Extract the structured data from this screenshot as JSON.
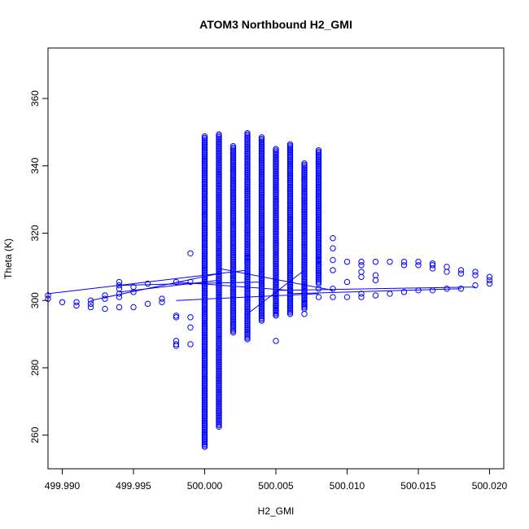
{
  "chart_data": {
    "type": "scatter",
    "title": "ATOM3 Northbound H2_GMI",
    "xlabel": "H2_GMI",
    "ylabel": "Theta (K)",
    "xlim": [
      499.989,
      500.021
    ],
    "ylim": [
      250,
      375
    ],
    "xticks": [
      "499.990",
      "499.995",
      "500.000",
      "500.005",
      "500.010",
      "500.015",
      "500.020"
    ],
    "yticks": [
      "260",
      "280",
      "300",
      "320",
      "340",
      "360"
    ],
    "marker": "open-circle",
    "color": "#0000ff",
    "grid": false,
    "legend": "none",
    "columns": [
      {
        "x": 500.0,
        "ymin": 256.5,
        "ymax": 349.0
      },
      {
        "x": 500.001,
        "ymin": 262.5,
        "ymax": 349.5
      },
      {
        "x": 500.002,
        "ymin": 290.5,
        "ymax": 346.0
      },
      {
        "x": 500.003,
        "ymin": 288.5,
        "ymax": 350.0
      },
      {
        "x": 500.004,
        "ymin": 294.0,
        "ymax": 348.5
      },
      {
        "x": 500.005,
        "ymin": 295.5,
        "ymax": 345.0
      },
      {
        "x": 500.006,
        "ymin": 296.0,
        "ymax": 346.5
      },
      {
        "x": 500.007,
        "ymin": 297.5,
        "ymax": 341.0
      },
      {
        "x": 500.008,
        "ymin": 305.0,
        "ymax": 345.0
      }
    ],
    "points": [
      {
        "x": 499.989,
        "y": 300.5
      },
      {
        "x": 499.989,
        "y": 301.5
      },
      {
        "x": 499.99,
        "y": 299.5
      },
      {
        "x": 499.991,
        "y": 298.5
      },
      {
        "x": 499.991,
        "y": 299.5
      },
      {
        "x": 499.992,
        "y": 298.0
      },
      {
        "x": 499.992,
        "y": 300.0
      },
      {
        "x": 499.992,
        "y": 299.0
      },
      {
        "x": 499.993,
        "y": 297.5
      },
      {
        "x": 499.993,
        "y": 300.5
      },
      {
        "x": 499.993,
        "y": 301.5
      },
      {
        "x": 499.994,
        "y": 298.0
      },
      {
        "x": 499.994,
        "y": 301.0
      },
      {
        "x": 499.994,
        "y": 302.0
      },
      {
        "x": 499.994,
        "y": 303.5
      },
      {
        "x": 499.994,
        "y": 304.5
      },
      {
        "x": 499.994,
        "y": 305.5
      },
      {
        "x": 499.995,
        "y": 298.0
      },
      {
        "x": 499.995,
        "y": 302.5
      },
      {
        "x": 499.995,
        "y": 304.0
      },
      {
        "x": 499.996,
        "y": 299.0
      },
      {
        "x": 499.996,
        "y": 305.0
      },
      {
        "x": 499.997,
        "y": 299.5
      },
      {
        "x": 499.997,
        "y": 300.5
      },
      {
        "x": 499.998,
        "y": 295.0
      },
      {
        "x": 499.998,
        "y": 295.5
      },
      {
        "x": 499.998,
        "y": 305.5
      },
      {
        "x": 499.998,
        "y": 287.0
      },
      {
        "x": 499.998,
        "y": 288.0
      },
      {
        "x": 499.998,
        "y": 286.5
      },
      {
        "x": 499.999,
        "y": 314.0
      },
      {
        "x": 499.999,
        "y": 292.0
      },
      {
        "x": 499.999,
        "y": 295.0
      },
      {
        "x": 499.999,
        "y": 287.0
      },
      {
        "x": 499.999,
        "y": 305.5
      },
      {
        "x": 500.003,
        "y": 311.5
      },
      {
        "x": 500.003,
        "y": 312.5
      },
      {
        "x": 500.005,
        "y": 288.0
      },
      {
        "x": 500.005,
        "y": 297.0
      },
      {
        "x": 500.005,
        "y": 298.5
      },
      {
        "x": 500.006,
        "y": 300.5
      },
      {
        "x": 500.006,
        "y": 303.0
      },
      {
        "x": 500.007,
        "y": 296.0
      },
      {
        "x": 500.007,
        "y": 299.0
      },
      {
        "x": 500.007,
        "y": 304.0
      },
      {
        "x": 500.008,
        "y": 301.0
      },
      {
        "x": 500.008,
        "y": 303.5
      },
      {
        "x": 500.008,
        "y": 312.0
      },
      {
        "x": 500.009,
        "y": 301.0
      },
      {
        "x": 500.009,
        "y": 303.5
      },
      {
        "x": 500.009,
        "y": 309.0
      },
      {
        "x": 500.009,
        "y": 312.0
      },
      {
        "x": 500.009,
        "y": 315.5
      },
      {
        "x": 500.009,
        "y": 318.5
      },
      {
        "x": 500.01,
        "y": 301.0
      },
      {
        "x": 500.01,
        "y": 305.5
      },
      {
        "x": 500.01,
        "y": 311.5
      },
      {
        "x": 500.011,
        "y": 301.0
      },
      {
        "x": 500.011,
        "y": 302.0
      },
      {
        "x": 500.011,
        "y": 307.0
      },
      {
        "x": 500.011,
        "y": 308.5
      },
      {
        "x": 500.011,
        "y": 310.5
      },
      {
        "x": 500.011,
        "y": 311.5
      },
      {
        "x": 500.012,
        "y": 301.5
      },
      {
        "x": 500.012,
        "y": 306.0
      },
      {
        "x": 500.012,
        "y": 307.5
      },
      {
        "x": 500.012,
        "y": 311.5
      },
      {
        "x": 500.013,
        "y": 302.0
      },
      {
        "x": 500.013,
        "y": 311.5
      },
      {
        "x": 500.014,
        "y": 302.5
      },
      {
        "x": 500.014,
        "y": 310.5
      },
      {
        "x": 500.014,
        "y": 311.5
      },
      {
        "x": 500.015,
        "y": 303.0
      },
      {
        "x": 500.015,
        "y": 310.5
      },
      {
        "x": 500.015,
        "y": 311.5
      },
      {
        "x": 500.016,
        "y": 303.0
      },
      {
        "x": 500.016,
        "y": 309.5
      },
      {
        "x": 500.016,
        "y": 310.5
      },
      {
        "x": 500.016,
        "y": 311.0
      },
      {
        "x": 500.017,
        "y": 303.5
      },
      {
        "x": 500.017,
        "y": 308.5
      },
      {
        "x": 500.017,
        "y": 310.0
      },
      {
        "x": 500.018,
        "y": 303.5
      },
      {
        "x": 500.018,
        "y": 308.0
      },
      {
        "x": 500.018,
        "y": 309.0
      },
      {
        "x": 500.019,
        "y": 304.5
      },
      {
        "x": 500.019,
        "y": 307.5
      },
      {
        "x": 500.019,
        "y": 308.5
      },
      {
        "x": 500.02,
        "y": 305.0
      },
      {
        "x": 500.02,
        "y": 306.0
      },
      {
        "x": 500.02,
        "y": 307.0
      }
    ],
    "lines": [
      {
        "x1": 499.989,
        "y1": 302.0,
        "x2": 500.003,
        "y2": 309.0
      },
      {
        "x1": 499.992,
        "y1": 300.0,
        "x2": 500.001,
        "y2": 308.0
      },
      {
        "x1": 499.994,
        "y1": 302.5,
        "x2": 500.001,
        "y2": 306.0
      },
      {
        "x1": 499.994,
        "y1": 304.5,
        "x2": 500.004,
        "y2": 305.5
      },
      {
        "x1": 499.998,
        "y1": 300.0,
        "x2": 500.008,
        "y2": 302.0
      },
      {
        "x1": 499.998,
        "y1": 305.5,
        "x2": 500.006,
        "y2": 303.0
      },
      {
        "x1": 500.001,
        "y1": 309.5,
        "x2": 500.009,
        "y2": 303.0
      },
      {
        "x1": 500.005,
        "y1": 303.0,
        "x2": 500.019,
        "y2": 304.0
      },
      {
        "x1": 500.006,
        "y1": 302.0,
        "x2": 500.018,
        "y2": 303.5
      },
      {
        "x1": 500.003,
        "y1": 296.0,
        "x2": 500.007,
        "y2": 309.0
      }
    ]
  }
}
